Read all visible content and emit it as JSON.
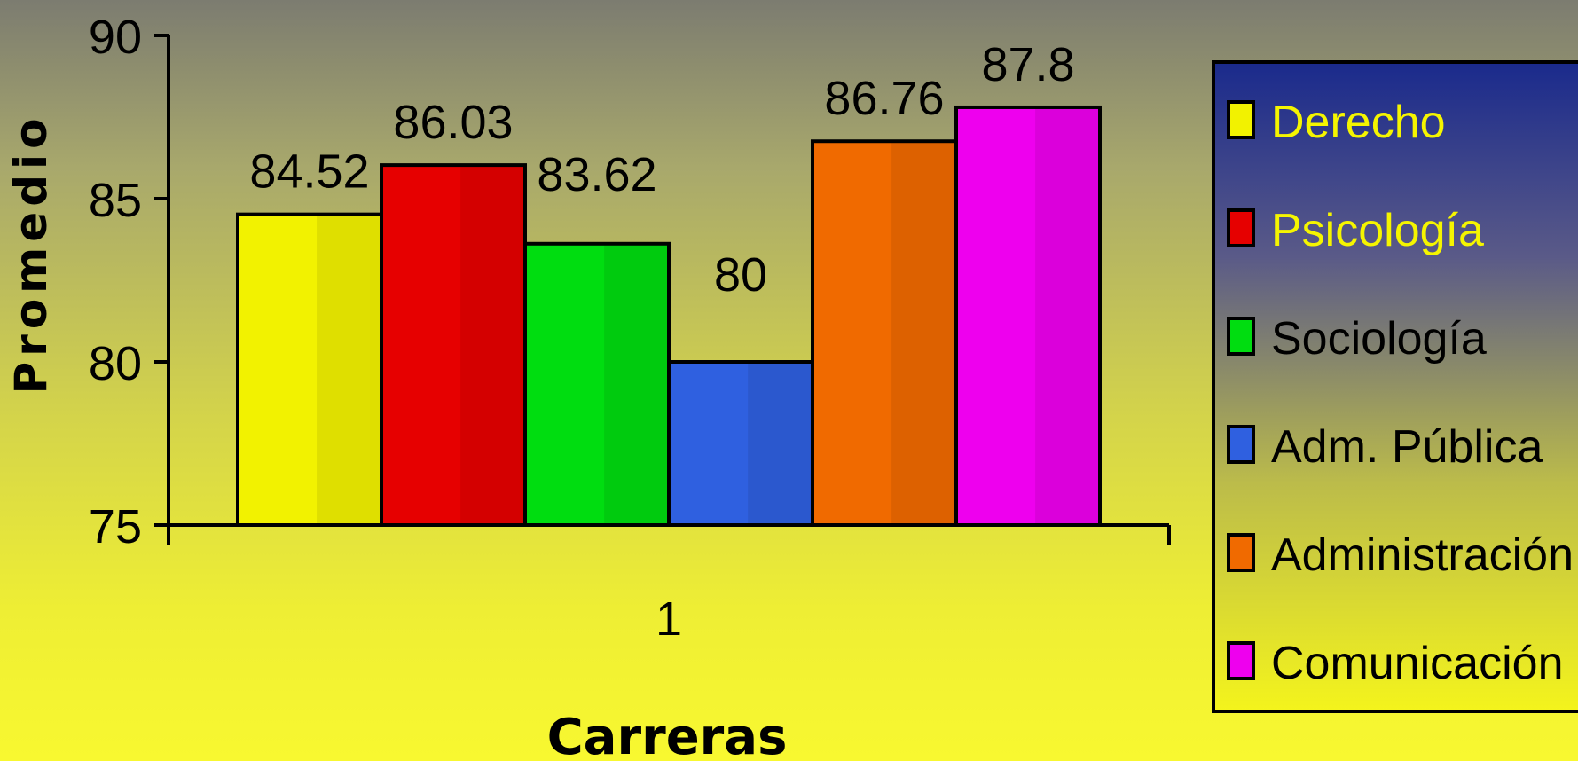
{
  "chart_data": {
    "type": "bar",
    "title": "",
    "xlabel": "Carreras",
    "ylabel": "Promedio",
    "categories": [
      "1"
    ],
    "series": [
      {
        "name": "Derecho",
        "values": [
          84.52
        ],
        "color": "#f2f200",
        "label_color": "#f5f500"
      },
      {
        "name": "Psicología",
        "values": [
          86.03
        ],
        "color": "#e60000",
        "label_color": "#f5f500"
      },
      {
        "name": "Sociología",
        "values": [
          83.62
        ],
        "color": "#00dd10",
        "label_color": "#000000"
      },
      {
        "name": "Adm. Pública",
        "values": [
          80
        ],
        "color": "#2f60e0",
        "label_color": "#000000"
      },
      {
        "name": "Administración",
        "values": [
          86.76
        ],
        "color": "#f06a00",
        "label_color": "#000000"
      },
      {
        "name": "Comunicación",
        "values": [
          87.8
        ],
        "color": "#ee00ee",
        "label_color": "#000000"
      }
    ],
    "data_labels": [
      "84.52",
      "86.03",
      "83.62",
      "80",
      "86.76",
      "87.8"
    ],
    "ylim": [
      75,
      90
    ],
    "yticks": [
      "75",
      "80",
      "85",
      "90"
    ],
    "grid": false,
    "legend_position": "right"
  }
}
